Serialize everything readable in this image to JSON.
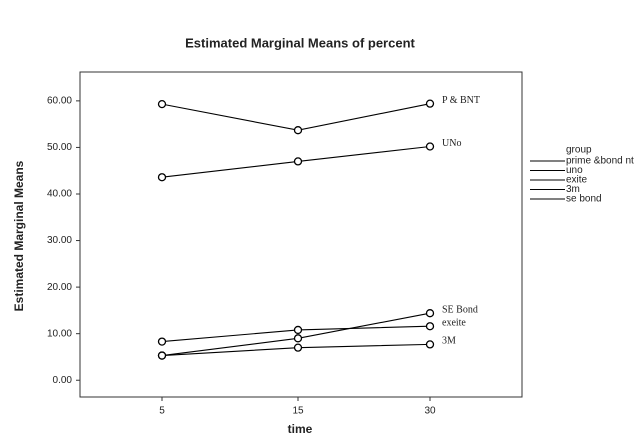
{
  "chart_data": {
    "type": "line",
    "title": "Estimated Marginal Means of percent",
    "x_label": "time",
    "y_label": "Estimated Marginal Means",
    "legend_title": "group",
    "legend_position": "right",
    "categories": [
      "5",
      "15",
      "30"
    ],
    "series": [
      {
        "name": "prime &bond nt",
        "color": "#000000",
        "values": [
          59.3,
          53.7,
          59.4
        ],
        "end_label": "P & BNT"
      },
      {
        "name": "uno",
        "color": "#000000",
        "values": [
          43.6,
          47.0,
          50.2
        ],
        "end_label": "UNo"
      },
      {
        "name": "exite",
        "color": "#000000",
        "values": [
          8.3,
          10.8,
          11.6
        ],
        "end_label": "exeite"
      },
      {
        "name": "3m",
        "color": "#000000",
        "values": [
          5.3,
          7.0,
          7.7
        ],
        "end_label": "3M"
      },
      {
        "name": "se bond",
        "color": "#000000",
        "values": [
          5.3,
          9.0,
          14.4
        ],
        "end_label": "SE Bond"
      }
    ],
    "ylim": [
      -3.6,
      66.2
    ],
    "yticks": [
      {
        "value": 0,
        "label": "0.00"
      },
      {
        "value": 10,
        "label": "10.00"
      },
      {
        "value": 20,
        "label": "20.00"
      },
      {
        "value": 30,
        "label": "30.00"
      },
      {
        "value": 40,
        "label": "40.00"
      },
      {
        "value": 50,
        "label": "50.00"
      },
      {
        "value": 60,
        "label": "60.00"
      }
    ],
    "grid": false
  }
}
